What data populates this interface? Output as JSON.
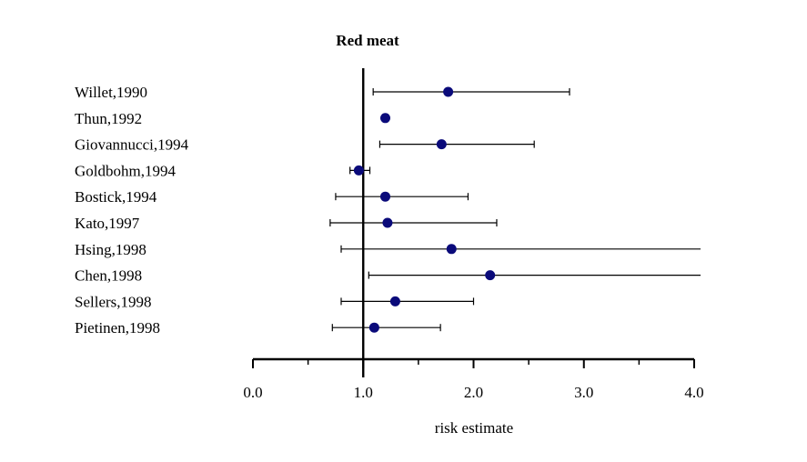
{
  "chart_data": {
    "type": "forest",
    "title": "Red meat",
    "xlabel": "risk estimate",
    "xlim": [
      0.0,
      4.0
    ],
    "reference_line": 1.0,
    "x_ticks": [
      "0.0",
      "1.0",
      "2.0",
      "3.0",
      "4.0"
    ],
    "studies": [
      {
        "label": "Willet,1990",
        "estimate": 1.77,
        "lower": 1.09,
        "upper": 2.87
      },
      {
        "label": "Thun,1992",
        "estimate": 1.2,
        "lower": null,
        "upper": null
      },
      {
        "label": "Giovannucci,1994",
        "estimate": 1.71,
        "lower": 1.15,
        "upper": 2.55
      },
      {
        "label": "Goldbohm,1994",
        "estimate": 0.96,
        "lower": 0.88,
        "upper": 1.06
      },
      {
        "label": "Bostick,1994",
        "estimate": 1.2,
        "lower": 0.75,
        "upper": 1.95
      },
      {
        "label": "Kato,1997",
        "estimate": 1.22,
        "lower": 0.7,
        "upper": 2.21
      },
      {
        "label": "Hsing,1998",
        "estimate": 1.8,
        "lower": 0.8,
        "upper": 4.05
      },
      {
        "label": "Chen,1998",
        "estimate": 2.15,
        "lower": 1.05,
        "upper": 4.05
      },
      {
        "label": "Sellers,1998",
        "estimate": 1.29,
        "lower": 0.8,
        "upper": 2.0
      },
      {
        "label": "Pietinen,1998",
        "estimate": 1.1,
        "lower": 0.72,
        "upper": 1.7
      }
    ],
    "colors": {
      "point": "#0a0a7a",
      "line": "#000000"
    }
  }
}
